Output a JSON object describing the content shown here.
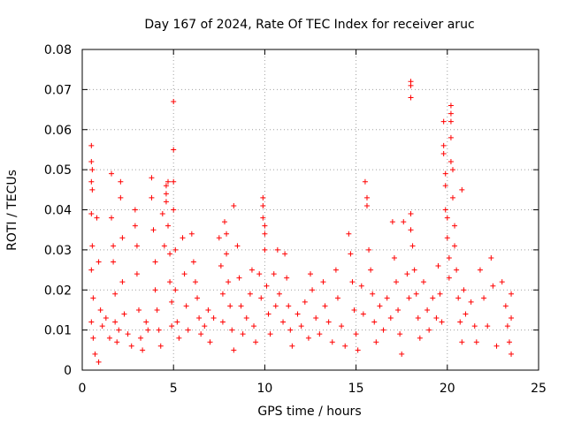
{
  "chart_data": {
    "type": "scatter",
    "title": "Day 167 of 2024, Rate Of TEC Index for receiver aruc",
    "xlabel": "GPS time / hours",
    "ylabel": "ROTI / TECUs",
    "xlim": [
      0,
      25
    ],
    "ylim": [
      0,
      0.08
    ],
    "xticks": [
      0,
      5,
      10,
      15,
      20,
      25
    ],
    "xtick_labels": [
      "0",
      "5",
      "10",
      "15",
      "20",
      "25"
    ],
    "yticks": [
      0,
      0.01,
      0.02,
      0.03,
      0.04,
      0.05,
      0.06,
      0.07,
      0.08
    ],
    "ytick_labels": [
      "0",
      "0.01",
      "0.02",
      "0.03",
      "0.04",
      "0.05",
      "0.06",
      "0.07",
      "0.08"
    ],
    "grid": true,
    "marker": "plus",
    "color": "#ff0000",
    "series": [
      {
        "points": [
          [
            0.5,
            0.056
          ],
          [
            0.5,
            0.052
          ],
          [
            0.55,
            0.05
          ],
          [
            0.5,
            0.047
          ],
          [
            0.55,
            0.045
          ],
          [
            0.5,
            0.039
          ],
          [
            0.55,
            0.031
          ],
          [
            0.5,
            0.025
          ],
          [
            0.6,
            0.018
          ],
          [
            0.5,
            0.012
          ],
          [
            0.6,
            0.008
          ],
          [
            0.7,
            0.004
          ],
          [
            0.9,
            0.002
          ],
          [
            0.8,
            0.038
          ],
          [
            0.9,
            0.027
          ],
          [
            1.0,
            0.015
          ],
          [
            1.1,
            0.011
          ],
          [
            1.3,
            0.013
          ],
          [
            1.5,
            0.008
          ],
          [
            1.6,
            0.049
          ],
          [
            1.6,
            0.038
          ],
          [
            1.7,
            0.031
          ],
          [
            1.7,
            0.027
          ],
          [
            1.8,
            0.019
          ],
          [
            1.8,
            0.012
          ],
          [
            1.9,
            0.007
          ],
          [
            2.0,
            0.01
          ],
          [
            2.1,
            0.047
          ],
          [
            2.1,
            0.043
          ],
          [
            2.2,
            0.033
          ],
          [
            2.2,
            0.022
          ],
          [
            2.3,
            0.014
          ],
          [
            2.5,
            0.009
          ],
          [
            2.7,
            0.006
          ],
          [
            2.9,
            0.04
          ],
          [
            2.9,
            0.036
          ],
          [
            3.0,
            0.031
          ],
          [
            3.0,
            0.024
          ],
          [
            3.1,
            0.015
          ],
          [
            3.2,
            0.008
          ],
          [
            3.3,
            0.005
          ],
          [
            3.5,
            0.012
          ],
          [
            3.6,
            0.01
          ],
          [
            3.8,
            0.048
          ],
          [
            3.8,
            0.043
          ],
          [
            3.9,
            0.035
          ],
          [
            4.0,
            0.027
          ],
          [
            4.0,
            0.02
          ],
          [
            4.1,
            0.015
          ],
          [
            4.2,
            0.01
          ],
          [
            4.3,
            0.006
          ],
          [
            4.4,
            0.039
          ],
          [
            4.5,
            0.031
          ],
          [
            4.6,
            0.046
          ],
          [
            4.6,
            0.044
          ],
          [
            4.6,
            0.042
          ],
          [
            4.7,
            0.047
          ],
          [
            4.7,
            0.036
          ],
          [
            4.8,
            0.029
          ],
          [
            4.8,
            0.022
          ],
          [
            4.9,
            0.017
          ],
          [
            4.9,
            0.011
          ],
          [
            5.0,
            0.067
          ],
          [
            5.0,
            0.055
          ],
          [
            5.0,
            0.047
          ],
          [
            5.0,
            0.04
          ],
          [
            5.1,
            0.03
          ],
          [
            5.1,
            0.02
          ],
          [
            5.2,
            0.012
          ],
          [
            5.3,
            0.008
          ],
          [
            5.5,
            0.033
          ],
          [
            5.6,
            0.024
          ],
          [
            5.7,
            0.016
          ],
          [
            5.8,
            0.01
          ],
          [
            6.0,
            0.034
          ],
          [
            6.1,
            0.027
          ],
          [
            6.2,
            0.022
          ],
          [
            6.3,
            0.018
          ],
          [
            6.4,
            0.013
          ],
          [
            6.5,
            0.009
          ],
          [
            6.7,
            0.011
          ],
          [
            6.9,
            0.015
          ],
          [
            7.0,
            0.007
          ],
          [
            7.2,
            0.013
          ],
          [
            7.5,
            0.033
          ],
          [
            7.6,
            0.026
          ],
          [
            7.7,
            0.019
          ],
          [
            7.7,
            0.012
          ],
          [
            7.8,
            0.037
          ],
          [
            7.9,
            0.034
          ],
          [
            7.9,
            0.029
          ],
          [
            8.0,
            0.022
          ],
          [
            8.1,
            0.016
          ],
          [
            8.2,
            0.01
          ],
          [
            8.3,
            0.005
          ],
          [
            8.3,
            0.041
          ],
          [
            8.5,
            0.031
          ],
          [
            8.6,
            0.023
          ],
          [
            8.7,
            0.016
          ],
          [
            8.8,
            0.009
          ],
          [
            9.0,
            0.013
          ],
          [
            9.2,
            0.019
          ],
          [
            9.3,
            0.025
          ],
          [
            9.4,
            0.011
          ],
          [
            9.5,
            0.007
          ],
          [
            9.7,
            0.024
          ],
          [
            9.8,
            0.018
          ],
          [
            9.9,
            0.043
          ],
          [
            9.9,
            0.041
          ],
          [
            9.9,
            0.038
          ],
          [
            10.0,
            0.036
          ],
          [
            10.0,
            0.034
          ],
          [
            10.0,
            0.03
          ],
          [
            10.1,
            0.021
          ],
          [
            10.2,
            0.014
          ],
          [
            10.3,
            0.009
          ],
          [
            10.5,
            0.024
          ],
          [
            10.6,
            0.016
          ],
          [
            10.7,
            0.03
          ],
          [
            10.8,
            0.019
          ],
          [
            11.0,
            0.012
          ],
          [
            11.1,
            0.029
          ],
          [
            11.2,
            0.023
          ],
          [
            11.3,
            0.016
          ],
          [
            11.4,
            0.01
          ],
          [
            11.5,
            0.006
          ],
          [
            11.8,
            0.014
          ],
          [
            12.0,
            0.011
          ],
          [
            12.2,
            0.017
          ],
          [
            12.4,
            0.008
          ],
          [
            12.5,
            0.024
          ],
          [
            12.6,
            0.02
          ],
          [
            12.8,
            0.013
          ],
          [
            13.0,
            0.009
          ],
          [
            13.2,
            0.022
          ],
          [
            13.3,
            0.016
          ],
          [
            13.5,
            0.012
          ],
          [
            13.7,
            0.007
          ],
          [
            13.9,
            0.025
          ],
          [
            14.0,
            0.018
          ],
          [
            14.2,
            0.011
          ],
          [
            14.4,
            0.006
          ],
          [
            14.6,
            0.034
          ],
          [
            14.7,
            0.029
          ],
          [
            14.8,
            0.022
          ],
          [
            14.9,
            0.015
          ],
          [
            15.0,
            0.009
          ],
          [
            15.1,
            0.005
          ],
          [
            15.3,
            0.021
          ],
          [
            15.4,
            0.014
          ],
          [
            15.5,
            0.047
          ],
          [
            15.6,
            0.043
          ],
          [
            15.6,
            0.041
          ],
          [
            15.7,
            0.03
          ],
          [
            15.8,
            0.025
          ],
          [
            15.9,
            0.019
          ],
          [
            16.0,
            0.012
          ],
          [
            16.1,
            0.007
          ],
          [
            16.3,
            0.016
          ],
          [
            16.5,
            0.01
          ],
          [
            16.7,
            0.018
          ],
          [
            16.9,
            0.013
          ],
          [
            17.0,
            0.037
          ],
          [
            17.1,
            0.028
          ],
          [
            17.2,
            0.022
          ],
          [
            17.3,
            0.015
          ],
          [
            17.4,
            0.009
          ],
          [
            17.5,
            0.004
          ],
          [
            17.6,
            0.037
          ],
          [
            17.8,
            0.024
          ],
          [
            17.9,
            0.018
          ],
          [
            18.0,
            0.071
          ],
          [
            18.0,
            0.072
          ],
          [
            18.0,
            0.068
          ],
          [
            18.0,
            0.039
          ],
          [
            18.0,
            0.035
          ],
          [
            18.1,
            0.031
          ],
          [
            18.2,
            0.025
          ],
          [
            18.3,
            0.019
          ],
          [
            18.4,
            0.013
          ],
          [
            18.5,
            0.008
          ],
          [
            18.7,
            0.022
          ],
          [
            18.9,
            0.015
          ],
          [
            19.0,
            0.01
          ],
          [
            19.2,
            0.018
          ],
          [
            19.4,
            0.013
          ],
          [
            19.5,
            0.026
          ],
          [
            19.6,
            0.019
          ],
          [
            19.7,
            0.012
          ],
          [
            19.8,
            0.062
          ],
          [
            19.8,
            0.056
          ],
          [
            19.8,
            0.054
          ],
          [
            19.9,
            0.049
          ],
          [
            19.9,
            0.046
          ],
          [
            19.9,
            0.04
          ],
          [
            20.0,
            0.038
          ],
          [
            20.0,
            0.033
          ],
          [
            20.1,
            0.028
          ],
          [
            20.1,
            0.023
          ],
          [
            20.2,
            0.066
          ],
          [
            20.2,
            0.064
          ],
          [
            20.2,
            0.062
          ],
          [
            20.2,
            0.058
          ],
          [
            20.2,
            0.052
          ],
          [
            20.3,
            0.05
          ],
          [
            20.3,
            0.043
          ],
          [
            20.4,
            0.036
          ],
          [
            20.4,
            0.031
          ],
          [
            20.5,
            0.025
          ],
          [
            20.6,
            0.018
          ],
          [
            20.7,
            0.012
          ],
          [
            20.8,
            0.045
          ],
          [
            20.8,
            0.007
          ],
          [
            20.9,
            0.02
          ],
          [
            21.0,
            0.014
          ],
          [
            21.3,
            0.017
          ],
          [
            21.5,
            0.011
          ],
          [
            21.6,
            0.007
          ],
          [
            21.8,
            0.025
          ],
          [
            22.0,
            0.018
          ],
          [
            22.2,
            0.011
          ],
          [
            22.4,
            0.028
          ],
          [
            22.5,
            0.021
          ],
          [
            22.7,
            0.006
          ],
          [
            23.0,
            0.022
          ],
          [
            23.2,
            0.016
          ],
          [
            23.3,
            0.011
          ],
          [
            23.4,
            0.007
          ],
          [
            23.5,
            0.019
          ],
          [
            23.5,
            0.013
          ],
          [
            23.5,
            0.004
          ]
        ]
      }
    ]
  }
}
